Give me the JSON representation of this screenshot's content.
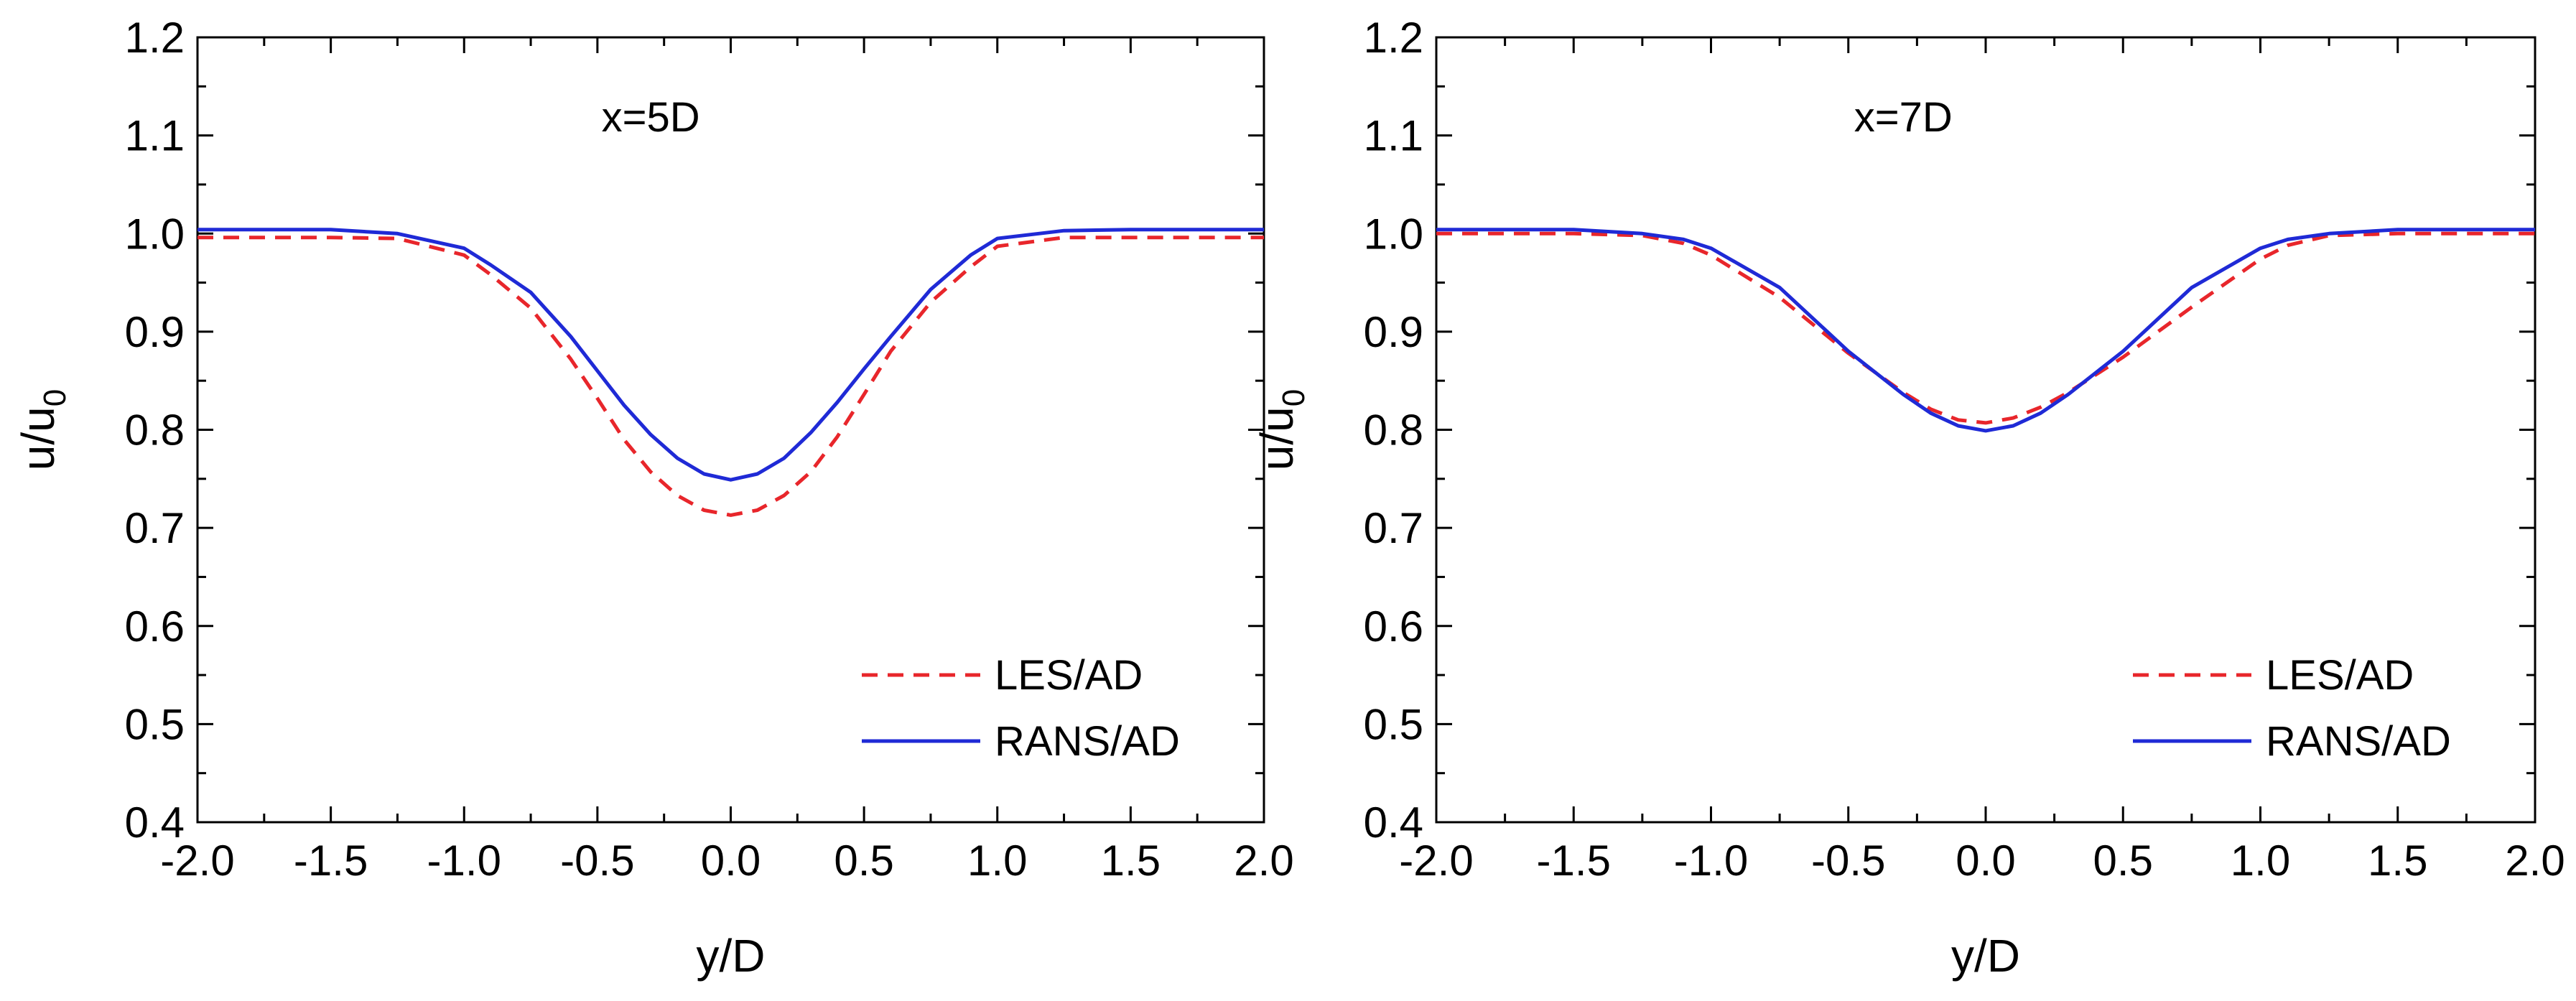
{
  "chart_data": [
    {
      "type": "line",
      "annotation": "x=5D",
      "xlabel": "y/D",
      "ylabel": "u/u",
      "ylabel_sub": "0",
      "xlim": [
        -2.0,
        2.0
      ],
      "ylim": [
        0.4,
        1.2
      ],
      "xticks": [
        "-2.0",
        "-1.5",
        "-1.0",
        "-0.5",
        "0.0",
        "0.5",
        "1.0",
        "1.5",
        "2.0"
      ],
      "yticks": [
        "0.4",
        "0.5",
        "0.6",
        "0.7",
        "0.8",
        "0.9",
        "1.0",
        "1.1",
        "1.2"
      ],
      "legend_position": "bottom-right",
      "series": [
        {
          "name": "LES/AD",
          "color": "#e8262b",
          "dash": "dashed",
          "x": [
            -2.0,
            -1.5,
            -1.25,
            -1.0,
            -0.9,
            -0.75,
            -0.6,
            -0.5,
            -0.4,
            -0.3,
            -0.2,
            -0.1,
            0.0,
            0.1,
            0.2,
            0.3,
            0.4,
            0.5,
            0.6,
            0.75,
            0.9,
            1.0,
            1.25,
            1.5,
            2.0
          ],
          "y": [
            0.996,
            0.996,
            0.995,
            0.978,
            0.958,
            0.924,
            0.872,
            0.832,
            0.79,
            0.757,
            0.733,
            0.718,
            0.713,
            0.718,
            0.733,
            0.757,
            0.793,
            0.836,
            0.88,
            0.93,
            0.966,
            0.987,
            0.996,
            0.996,
            0.996
          ]
        },
        {
          "name": "RANS/AD",
          "color": "#1f2ad6",
          "dash": "solid",
          "x": [
            -2.0,
            -1.5,
            -1.25,
            -1.0,
            -0.9,
            -0.75,
            -0.6,
            -0.5,
            -0.4,
            -0.3,
            -0.2,
            -0.1,
            0.0,
            0.1,
            0.2,
            0.3,
            0.4,
            0.5,
            0.6,
            0.75,
            0.9,
            1.0,
            1.25,
            1.5,
            2.0
          ],
          "y": [
            1.004,
            1.004,
            1.0,
            0.985,
            0.968,
            0.94,
            0.895,
            0.86,
            0.825,
            0.795,
            0.771,
            0.755,
            0.749,
            0.755,
            0.771,
            0.797,
            0.828,
            0.862,
            0.895,
            0.943,
            0.978,
            0.995,
            1.003,
            1.004,
            1.004
          ]
        }
      ]
    },
    {
      "type": "line",
      "annotation": "x=7D",
      "xlabel": "y/D",
      "ylabel": "u/u",
      "ylabel_sub": "0",
      "xlim": [
        -2.0,
        2.0
      ],
      "ylim": [
        0.4,
        1.2
      ],
      "xticks": [
        "-2.0",
        "-1.5",
        "-1.0",
        "-0.5",
        "0.0",
        "0.5",
        "1.0",
        "1.5",
        "2.0"
      ],
      "yticks": [
        "0.4",
        "0.5",
        "0.6",
        "0.7",
        "0.8",
        "0.9",
        "1.0",
        "1.1",
        "1.2"
      ],
      "legend_position": "bottom-right",
      "series": [
        {
          "name": "LES/AD",
          "color": "#e8262b",
          "dash": "dashed",
          "x": [
            -2.0,
            -1.5,
            -1.25,
            -1.1,
            -1.0,
            -0.75,
            -0.5,
            -0.3,
            -0.2,
            -0.1,
            0.0,
            0.1,
            0.2,
            0.3,
            0.5,
            0.75,
            1.0,
            1.1,
            1.25,
            1.5,
            2.0
          ],
          "y": [
            1.0,
            1.0,
            0.998,
            0.99,
            0.978,
            0.935,
            0.878,
            0.838,
            0.821,
            0.81,
            0.807,
            0.812,
            0.823,
            0.838,
            0.874,
            0.925,
            0.974,
            0.988,
            0.998,
            1.0,
            1.0
          ]
        },
        {
          "name": "RANS/AD",
          "color": "#1f2ad6",
          "dash": "solid",
          "x": [
            -2.0,
            -1.5,
            -1.25,
            -1.1,
            -1.0,
            -0.75,
            -0.5,
            -0.3,
            -0.2,
            -0.1,
            0.0,
            0.1,
            0.2,
            0.3,
            0.5,
            0.75,
            1.0,
            1.1,
            1.25,
            1.5,
            2.0
          ],
          "y": [
            1.004,
            1.004,
            1.0,
            0.994,
            0.985,
            0.945,
            0.88,
            0.836,
            0.817,
            0.804,
            0.799,
            0.804,
            0.817,
            0.836,
            0.88,
            0.945,
            0.985,
            0.994,
            1.0,
            1.004,
            1.004
          ]
        }
      ]
    }
  ]
}
